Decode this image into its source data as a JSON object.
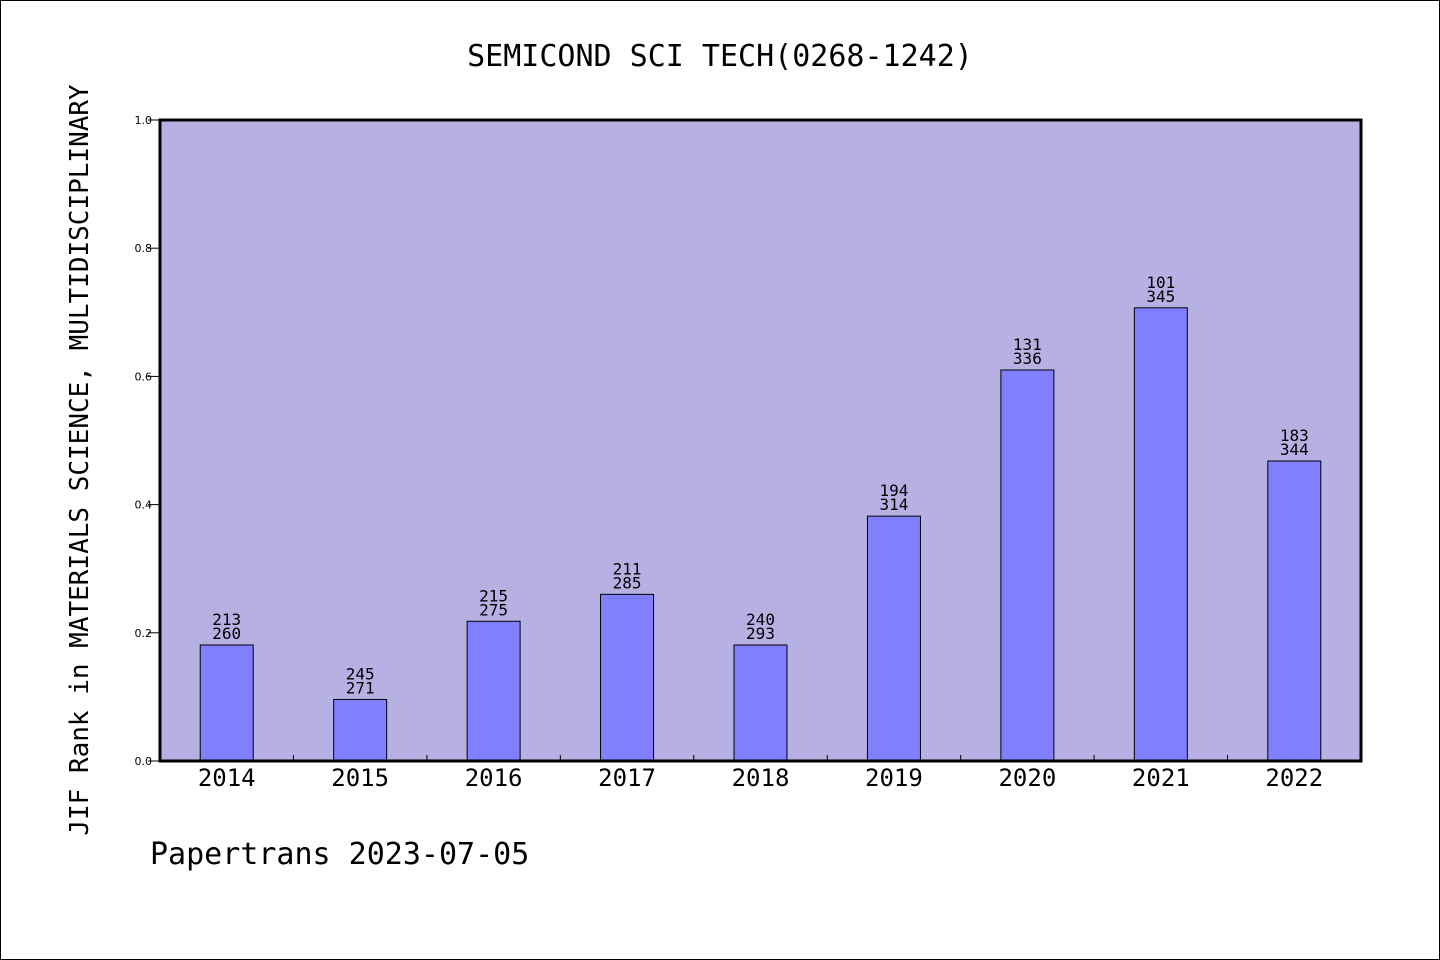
{
  "chart_data": {
    "type": "bar",
    "title": "SEMICOND SCI TECH(0268-1242)",
    "ylabel": "JIF Rank in MATERIALS SCIENCE, MULTIDISCIPLINARY",
    "xlabel": "",
    "ylim": [
      0.0,
      1.0
    ],
    "yticks": [
      "0.0",
      "0.2",
      "0.4",
      "0.6",
      "0.8",
      "1.0"
    ],
    "categories": [
      "2014",
      "2015",
      "2016",
      "2017",
      "2018",
      "2019",
      "2020",
      "2021",
      "2022"
    ],
    "values": [
      0.181,
      0.096,
      0.218,
      0.26,
      0.181,
      0.382,
      0.61,
      0.707,
      0.468
    ],
    "labels_top": [
      "213",
      "245",
      "215",
      "211",
      "240",
      "194",
      "131",
      "101",
      "183"
    ],
    "labels_bottom": [
      "260",
      "271",
      "275",
      "285",
      "293",
      "314",
      "336",
      "345",
      "344"
    ],
    "grid": false,
    "legend": "none",
    "colors": {
      "plot_bg": "#b6b1e2",
      "bar": "#8080ff",
      "axis": "#000000"
    }
  },
  "footer": "Papertrans 2023-07-05"
}
